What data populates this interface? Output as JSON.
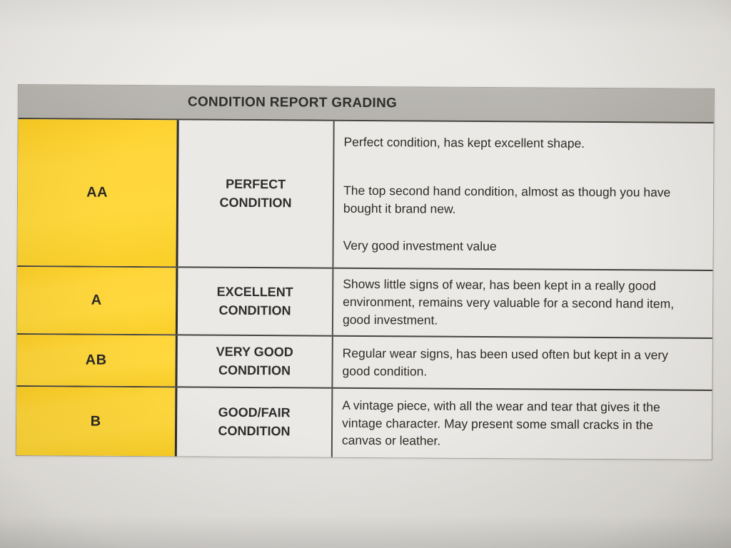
{
  "table": {
    "header": "CONDITION REPORT GRADING",
    "colors": {
      "header_bg": "#b1aea8",
      "grade_bg": "#ffd22a",
      "cell_bg": "#eae8e5",
      "border": "#3a3833",
      "text": "#211f1c"
    },
    "rows": [
      {
        "grade": "AA",
        "condition": "PERFECT CONDITION",
        "description": [
          "Perfect condition, has kept excellent shape.",
          "The top second hand condition, almost as though you have bought it brand new.",
          "Very good investment value"
        ]
      },
      {
        "grade": "A",
        "condition": "EXCELLENT CONDITION",
        "description": [
          "Shows little signs of wear, has been kept in a really good environment, remains very valuable for a second hand item, good investment."
        ]
      },
      {
        "grade": "AB",
        "condition": "VERY GOOD CONDITION",
        "description": [
          "Regular wear signs, has been used often but kept in a very good condition."
        ]
      },
      {
        "grade": "B",
        "condition": "GOOD/FAIR CONDITION",
        "description": [
          "A vintage piece, with all the wear and tear that gives it the vintage character. May present some small cracks in the canvas or leather."
        ]
      }
    ]
  }
}
